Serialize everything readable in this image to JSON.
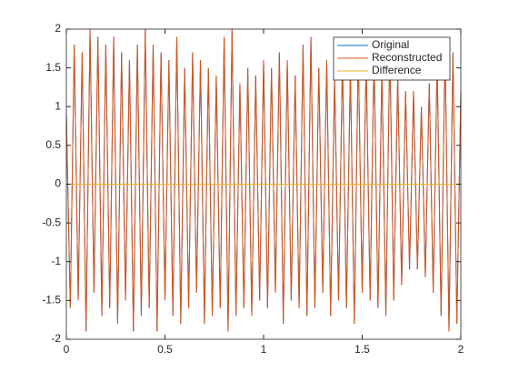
{
  "chart_data": {
    "type": "line",
    "x": [
      0,
      0.02,
      0.04,
      0.06,
      0.08,
      0.1,
      0.12,
      0.14,
      0.16,
      0.18,
      0.2,
      0.22,
      0.24,
      0.26,
      0.28,
      0.3,
      0.32,
      0.34,
      0.36,
      0.38,
      0.4,
      0.42,
      0.44,
      0.46,
      0.48,
      0.5,
      0.52,
      0.54,
      0.56,
      0.58,
      0.6,
      0.62,
      0.64,
      0.66,
      0.68,
      0.7,
      0.72,
      0.74,
      0.76,
      0.78,
      0.8,
      0.82,
      0.84,
      0.86,
      0.88,
      0.9,
      0.92,
      0.94,
      0.96,
      0.98,
      1,
      1.02,
      1.04,
      1.06,
      1.08,
      1.1,
      1.12,
      1.14,
      1.16,
      1.18,
      1.2,
      1.22,
      1.24,
      1.26,
      1.28,
      1.3,
      1.32,
      1.34,
      1.36,
      1.38,
      1.4,
      1.42,
      1.44,
      1.46,
      1.48,
      1.5,
      1.52,
      1.54,
      1.56,
      1.58,
      1.6,
      1.62,
      1.64,
      1.66,
      1.68,
      1.7,
      1.72,
      1.74,
      1.76,
      1.78,
      1.8,
      1.82,
      1.84,
      1.86,
      1.88,
      1.9,
      1.92,
      1.94,
      1.96,
      1.98,
      2
    ],
    "series": [
      {
        "name": "Original",
        "color": "#0072BD",
        "values": [
          0.9,
          -1.6,
          1.8,
          -1.5,
          1.7,
          -1.9,
          2.0,
          -1.4,
          1.9,
          -1.7,
          1.8,
          -1.6,
          1.9,
          -1.8,
          1.7,
          -1.5,
          1.6,
          -1.9,
          1.8,
          -1.7,
          2.0,
          -1.6,
          1.8,
          -1.9,
          1.7,
          -1.5,
          1.6,
          -1.7,
          1.9,
          -1.8,
          1.5,
          -1.6,
          1.7,
          -1.4,
          1.6,
          -1.8,
          1.5,
          -1.7,
          1.4,
          -1.6,
          1.9,
          -1.9,
          2.0,
          -1.7,
          1.3,
          -1.6,
          1.5,
          -1.7,
          1.4,
          -1.5,
          1.6,
          -1.6,
          1.5,
          -1.4,
          1.7,
          -1.8,
          1.6,
          -1.5,
          1.4,
          -1.6,
          1.8,
          -1.7,
          1.9,
          -1.6,
          1.5,
          -1.4,
          1.6,
          -1.7,
          1.4,
          -1.5,
          1.6,
          -1.6,
          1.5,
          -1.8,
          1.7,
          -1.4,
          1.6,
          -1.5,
          1.7,
          -1.6,
          1.5,
          -1.7,
          1.8,
          -1.5,
          1.4,
          -1.3,
          1.2,
          -1.1,
          1.2,
          -1.1,
          1.0,
          -1.2,
          1.3,
          -1.4,
          1.6,
          -1.7,
          1.8,
          -1.9,
          1.7,
          -1.8,
          1.2
        ]
      },
      {
        "name": "Reconstructed",
        "color": "#D95319",
        "values": [
          0.9,
          -1.6,
          1.8,
          -1.5,
          1.7,
          -1.9,
          2.0,
          -1.4,
          1.9,
          -1.7,
          1.8,
          -1.6,
          1.9,
          -1.8,
          1.7,
          -1.5,
          1.6,
          -1.9,
          1.8,
          -1.7,
          2.0,
          -1.6,
          1.8,
          -1.9,
          1.7,
          -1.5,
          1.6,
          -1.7,
          1.9,
          -1.8,
          1.5,
          -1.6,
          1.7,
          -1.4,
          1.6,
          -1.8,
          1.5,
          -1.7,
          1.4,
          -1.6,
          1.9,
          -1.9,
          2.0,
          -1.7,
          1.3,
          -1.6,
          1.5,
          -1.7,
          1.4,
          -1.5,
          1.6,
          -1.6,
          1.5,
          -1.4,
          1.7,
          -1.8,
          1.6,
          -1.5,
          1.4,
          -1.6,
          1.8,
          -1.7,
          1.9,
          -1.6,
          1.5,
          -1.4,
          1.6,
          -1.7,
          1.4,
          -1.5,
          1.6,
          -1.6,
          1.5,
          -1.8,
          1.7,
          -1.4,
          1.6,
          -1.5,
          1.7,
          -1.6,
          1.5,
          -1.7,
          1.8,
          -1.5,
          1.4,
          -1.3,
          1.2,
          -1.1,
          1.2,
          -1.1,
          1.0,
          -1.2,
          1.3,
          -1.4,
          1.6,
          -1.7,
          1.8,
          -1.9,
          1.7,
          -1.8,
          1.2
        ]
      },
      {
        "name": "Difference",
        "color": "#EDB120",
        "values": [
          0,
          0,
          0,
          0,
          0,
          0,
          0,
          0,
          0,
          0,
          0,
          0,
          0,
          0,
          0,
          0,
          0,
          0,
          0,
          0,
          0,
          0,
          0,
          0,
          0,
          0,
          0,
          0,
          0,
          0,
          0,
          0,
          0,
          0,
          0,
          0,
          0,
          0,
          0,
          0,
          0,
          0,
          0,
          0,
          0,
          0,
          0,
          0,
          0,
          0,
          0,
          0,
          0,
          0,
          0,
          0,
          0,
          0,
          0,
          0,
          0,
          0,
          0,
          0,
          0,
          0,
          0,
          0,
          0,
          0,
          0,
          0,
          0,
          0,
          0,
          0,
          0,
          0,
          0,
          0,
          0,
          0,
          0,
          0,
          0,
          0,
          0,
          0,
          0,
          0,
          0,
          0,
          0,
          0,
          0,
          0,
          0,
          0,
          0,
          0,
          0
        ]
      }
    ],
    "xlim": [
      0,
      2
    ],
    "xticks": [
      0,
      0.5,
      1,
      1.5,
      2
    ],
    "ylim": [
      -2,
      2
    ],
    "yticks": [
      -2,
      -1.5,
      -1,
      -0.5,
      0,
      0.5,
      1,
      1.5,
      2
    ],
    "legend": "upper-right"
  }
}
